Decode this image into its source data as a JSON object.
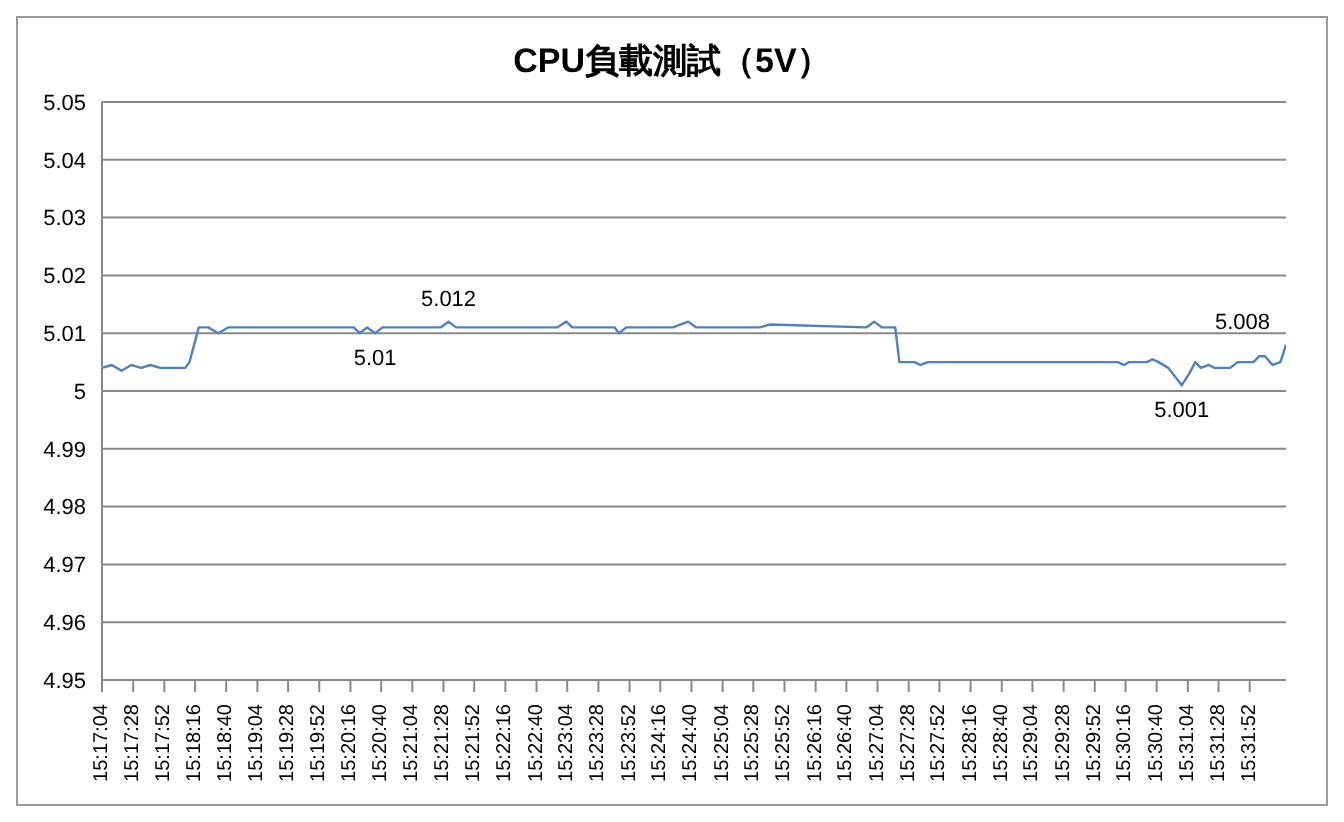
{
  "chart_data": {
    "type": "line",
    "title": "CPU負載測試（5V）",
    "xlim": [
      15.2844,
      15.5389
    ],
    "xticks": [
      {
        "value": 15.2844,
        "label": "15:17:04"
      },
      {
        "value": 15.2911,
        "label": "15:17:28"
      },
      {
        "value": 15.2978,
        "label": "15:17:52"
      },
      {
        "value": 15.3044,
        "label": "15:18:16"
      },
      {
        "value": 15.3111,
        "label": "15:18:40"
      },
      {
        "value": 15.3178,
        "label": "15:19:04"
      },
      {
        "value": 15.3244,
        "label": "15:19:28"
      },
      {
        "value": 15.3311,
        "label": "15:19:52"
      },
      {
        "value": 15.3378,
        "label": "15:20:16"
      },
      {
        "value": 15.3444,
        "label": "15:20:40"
      },
      {
        "value": 15.3511,
        "label": "15:21:04"
      },
      {
        "value": 15.3578,
        "label": "15:21:28"
      },
      {
        "value": 15.3644,
        "label": "15:21:52"
      },
      {
        "value": 15.3711,
        "label": "15:22:16"
      },
      {
        "value": 15.3778,
        "label": "15:22:40"
      },
      {
        "value": 15.3844,
        "label": "15:23:04"
      },
      {
        "value": 15.3911,
        "label": "15:23:28"
      },
      {
        "value": 15.3978,
        "label": "15:23:52"
      },
      {
        "value": 15.4044,
        "label": "15:24:16"
      },
      {
        "value": 15.4111,
        "label": "15:24:40"
      },
      {
        "value": 15.4178,
        "label": "15:25:04"
      },
      {
        "value": 15.4244,
        "label": "15:25:28"
      },
      {
        "value": 15.4311,
        "label": "15:25:52"
      },
      {
        "value": 15.4378,
        "label": "15:26:16"
      },
      {
        "value": 15.4444,
        "label": "15:26:40"
      },
      {
        "value": 15.4511,
        "label": "15:27:04"
      },
      {
        "value": 15.4578,
        "label": "15:27:28"
      },
      {
        "value": 15.4644,
        "label": "15:27:52"
      },
      {
        "value": 15.4711,
        "label": "15:28:16"
      },
      {
        "value": 15.4778,
        "label": "15:28:40"
      },
      {
        "value": 15.4844,
        "label": "15:29:04"
      },
      {
        "value": 15.4911,
        "label": "15:29:28"
      },
      {
        "value": 15.4978,
        "label": "15:29:52"
      },
      {
        "value": 15.5044,
        "label": "15:30:16"
      },
      {
        "value": 15.5111,
        "label": "15:30:40"
      },
      {
        "value": 15.5178,
        "label": "15:31:04"
      },
      {
        "value": 15.5244,
        "label": "15:31:28"
      },
      {
        "value": 15.5311,
        "label": "15:31:52"
      }
    ],
    "ylim": [
      4.95,
      5.05
    ],
    "yticks": [
      4.95,
      4.96,
      4.97,
      4.98,
      4.99,
      5,
      5.01,
      5.02,
      5.03,
      5.04,
      5.05
    ],
    "grid": "y",
    "marker": "none",
    "line_style": "solid",
    "x": [
      15.2844,
      15.2865,
      15.2886,
      15.2907,
      15.2928,
      15.2948,
      15.2969,
      15.299,
      15.3023,
      15.3032,
      15.3052,
      15.3073,
      15.3094,
      15.3115,
      15.3281,
      15.3385,
      15.3398,
      15.3414,
      15.3431,
      15.3447,
      15.3572,
      15.3589,
      15.3605,
      15.3822,
      15.3842,
      15.3855,
      15.3946,
      15.3955,
      15.3971,
      15.4071,
      15.4104,
      15.4121,
      15.4258,
      15.4279,
      15.4487,
      15.4504,
      15.452,
      15.4549,
      15.4558,
      15.4591,
      15.4603,
      15.462,
      15.5028,
      15.504,
      15.5052,
      15.509,
      15.5102,
      15.5115,
      15.5136,
      15.5165,
      15.5181,
      15.5194,
      15.5206,
      15.5223,
      15.5235,
      15.5269,
      15.5285,
      15.5319,
      15.5331,
      15.5344,
      15.536,
      15.5377,
      15.5389
    ],
    "series": [
      {
        "color": "#4f81bd",
        "values": [
          5.004,
          5.0045,
          5.0035,
          5.0045,
          5.004,
          5.0045,
          5.004,
          5.004,
          5.004,
          5.005,
          5.011,
          5.011,
          5.01,
          5.011,
          5.011,
          5.011,
          5.01,
          5.011,
          5.01,
          5.011,
          5.011,
          5.012,
          5.011,
          5.011,
          5.012,
          5.011,
          5.011,
          5.01,
          5.011,
          5.011,
          5.012,
          5.011,
          5.011,
          5.0115,
          5.011,
          5.012,
          5.011,
          5.011,
          5.005,
          5.005,
          5.0045,
          5.005,
          5.005,
          5.0045,
          5.005,
          5.005,
          5.0055,
          5.005,
          5.004,
          5.001,
          5.003,
          5.005,
          5.004,
          5.0045,
          5.004,
          5.004,
          5.005,
          5.005,
          5.006,
          5.006,
          5.0045,
          5.005,
          5.008
        ]
      }
    ],
    "annotations": [
      {
        "text": "5.01",
        "x": 15.3431,
        "y": 5.01
      },
      {
        "text": "5.012",
        "x": 15.3589,
        "y": 5.012
      },
      {
        "text": "5.001",
        "x": 15.5165,
        "y": 5.001
      },
      {
        "text": "5.008",
        "x": 15.5389,
        "y": 5.008
      }
    ]
  }
}
